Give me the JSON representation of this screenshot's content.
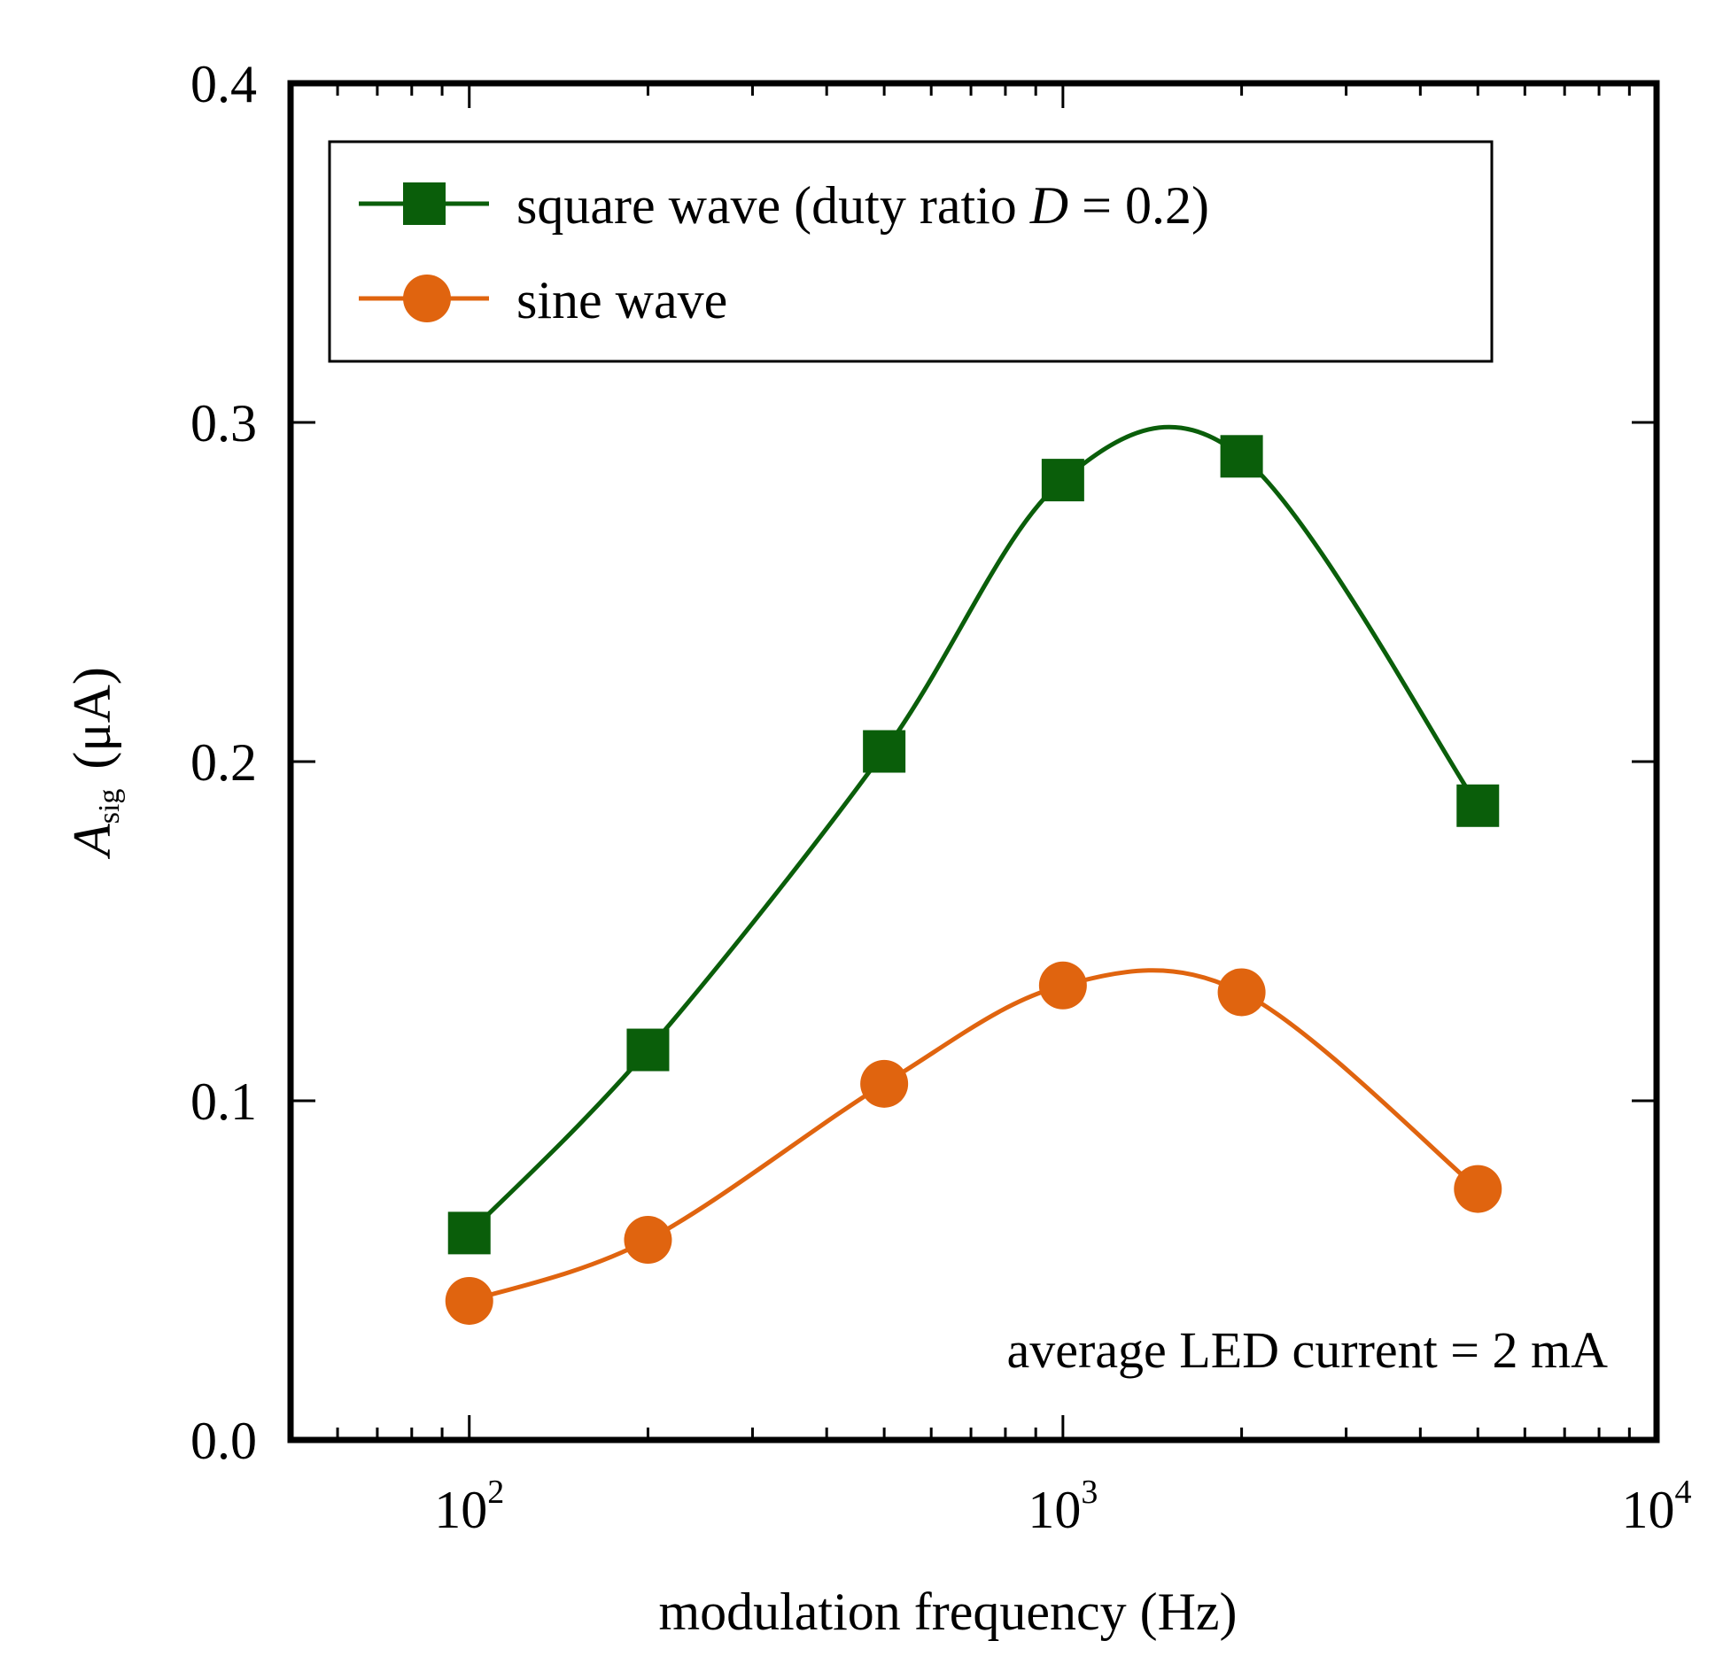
{
  "chart_data": {
    "type": "line",
    "xscale": "log",
    "xlim": [
      50,
      10000
    ],
    "ylim": [
      0.0,
      0.4
    ],
    "xlabel": "modulation frequency (Hz)",
    "ylabel": {
      "symbol": "A",
      "subscript": "sig",
      "unit": "(μA)"
    },
    "x_ticks": [
      {
        "value": 100,
        "base": "10",
        "exponent": "2"
      },
      {
        "value": 1000,
        "base": "10",
        "exponent": "3"
      },
      {
        "value": 10000,
        "base": "10",
        "exponent": "4"
      }
    ],
    "y_ticks": [
      {
        "value": 0.0,
        "label": "0.0"
      },
      {
        "value": 0.1,
        "label": "0.1"
      },
      {
        "value": 0.2,
        "label": "0.2"
      },
      {
        "value": 0.3,
        "label": "0.3"
      },
      {
        "value": 0.4,
        "label": "0.4"
      }
    ],
    "series": [
      {
        "name": "square wave (duty ratio D = 0.2)",
        "legend_prefix": "square wave (duty ratio ",
        "legend_italic": "D",
        "legend_suffix": " = 0.2)",
        "marker": "square",
        "color": "#0a5e0a",
        "x": [
          100,
          200,
          500,
          1000,
          2000,
          5000
        ],
        "values": [
          0.061,
          0.115,
          0.203,
          0.283,
          0.29,
          0.187
        ]
      },
      {
        "name": "sine wave",
        "marker": "circle",
        "color": "#e0640f",
        "x": [
          100,
          200,
          500,
          1000,
          2000,
          5000
        ],
        "values": [
          0.041,
          0.059,
          0.105,
          0.134,
          0.132,
          0.074
        ]
      }
    ],
    "annotation": "average LED current = 2 mA",
    "legend_position": "top-left"
  }
}
